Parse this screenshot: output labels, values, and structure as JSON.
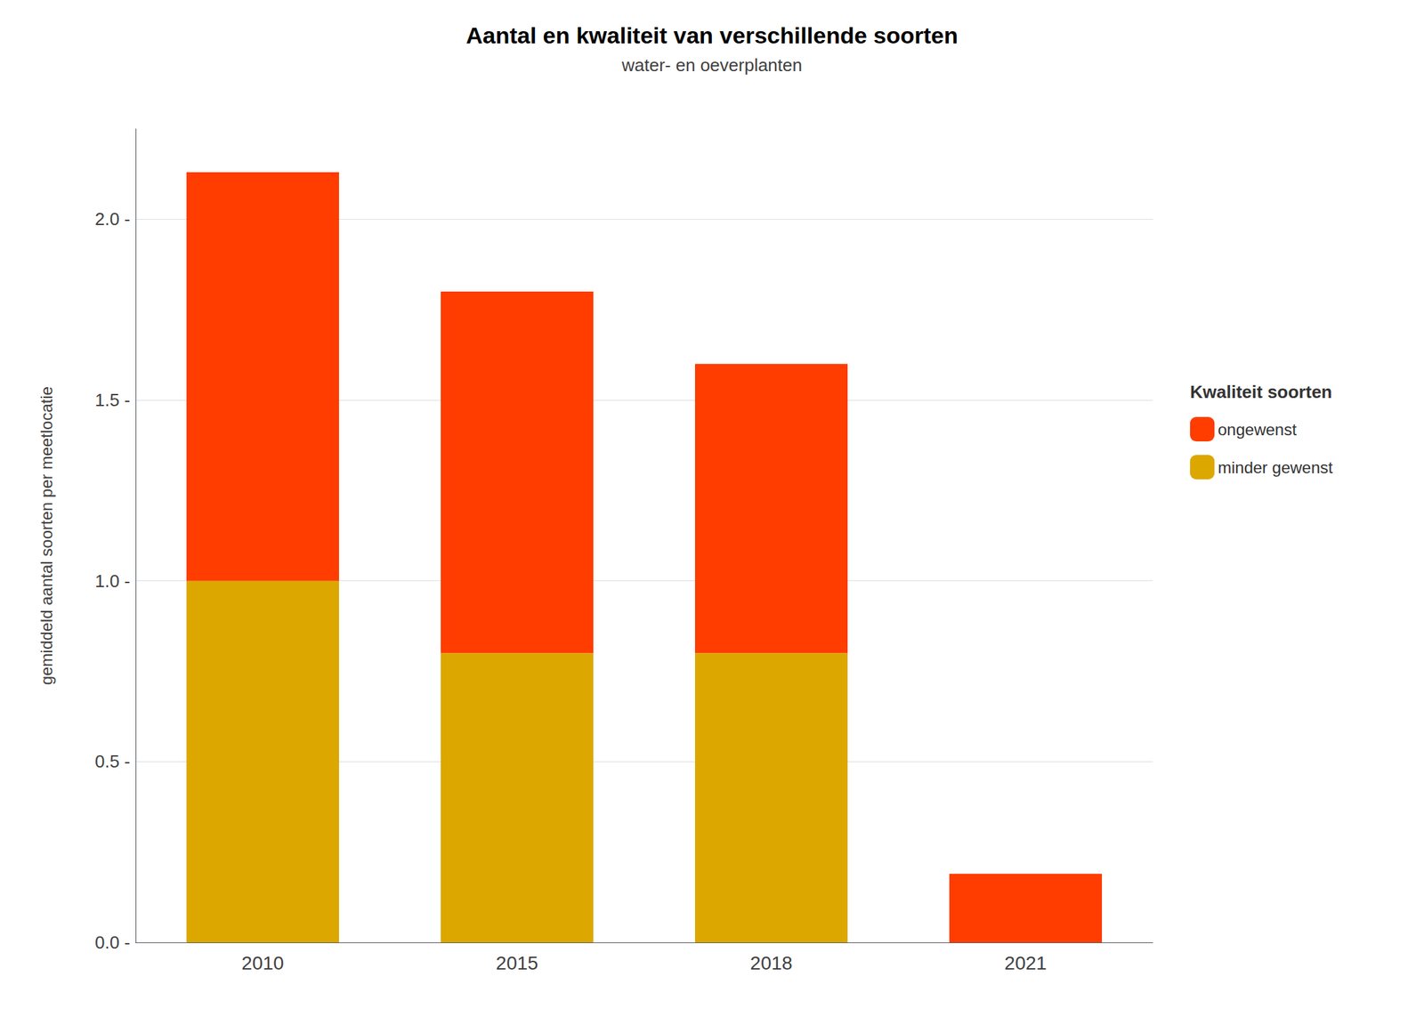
{
  "chart_data": {
    "type": "bar",
    "stacked": true,
    "title": "Aantal en kwaliteit van verschillende soorten",
    "subtitle": "water- en oeverplanten",
    "ylabel": "gemiddeld aantal soorten per meetlocatie",
    "legend_title": "Kwaliteit soorten",
    "categories": [
      "2010",
      "2015",
      "2018",
      "2021"
    ],
    "series": [
      {
        "name": "minder gewenst",
        "color": "#DCA800",
        "values": [
          1.0,
          0.8,
          0.8,
          0.0
        ]
      },
      {
        "name": "ongewenst",
        "color": "#FF3D00",
        "values": [
          1.13,
          1.0,
          0.8,
          0.19
        ]
      }
    ],
    "ylim": [
      0.0,
      2.25
    ],
    "yticks": [
      {
        "value": 0.0,
        "label": "0.0 -"
      },
      {
        "value": 0.5,
        "label": "0.5 -"
      },
      {
        "value": 1.0,
        "label": "1.0 -"
      },
      {
        "value": 1.5,
        "label": "1.5 -"
      },
      {
        "value": 2.0,
        "label": "2.0 -"
      }
    ],
    "grid": true,
    "legend": "right"
  }
}
